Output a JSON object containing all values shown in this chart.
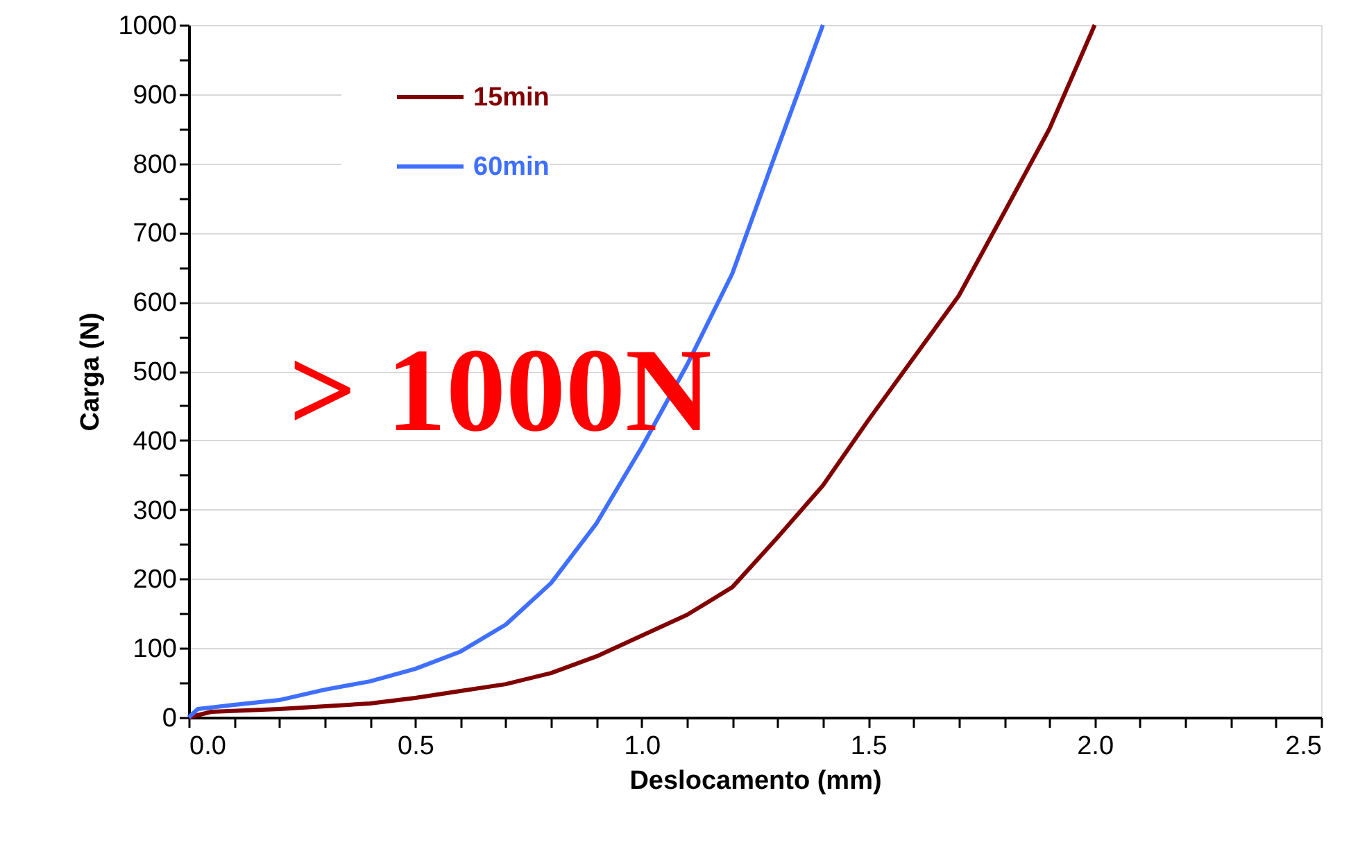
{
  "chart_data": {
    "type": "line",
    "xlabel": "Deslocamento (mm)",
    "ylabel": "Carga (N)",
    "xlim": [
      0,
      2.5
    ],
    "ylim": [
      0,
      1000
    ],
    "xticks": [
      {
        "value": 0,
        "label": "0.0"
      },
      {
        "value": 0.1,
        "label": null
      },
      {
        "value": 0.2,
        "label": null
      },
      {
        "value": 0.3,
        "label": null
      },
      {
        "value": 0.4,
        "label": null
      },
      {
        "value": 0.5,
        "label": "0.5"
      },
      {
        "value": 0.6,
        "label": null
      },
      {
        "value": 0.7,
        "label": null
      },
      {
        "value": 0.8,
        "label": null
      },
      {
        "value": 0.9,
        "label": null
      },
      {
        "value": 1.0,
        "label": "1.0"
      },
      {
        "value": 1.1,
        "label": null
      },
      {
        "value": 1.2,
        "label": null
      },
      {
        "value": 1.3,
        "label": null
      },
      {
        "value": 1.4,
        "label": null
      },
      {
        "value": 1.5,
        "label": "1.5"
      },
      {
        "value": 1.6,
        "label": null
      },
      {
        "value": 1.7,
        "label": null
      },
      {
        "value": 1.8,
        "label": null
      },
      {
        "value": 1.9,
        "label": null
      },
      {
        "value": 2.0,
        "label": "2.0"
      },
      {
        "value": 2.1,
        "label": null
      },
      {
        "value": 2.2,
        "label": null
      },
      {
        "value": 2.3,
        "label": null
      },
      {
        "value": 2.4,
        "label": null
      },
      {
        "value": 2.5,
        "label": "2.5"
      }
    ],
    "yticks": [
      0,
      {
        "value": 50,
        "label": null
      },
      100,
      {
        "value": 150,
        "label": null
      },
      200,
      {
        "value": 250,
        "label": null
      },
      300,
      {
        "value": 350,
        "label": null
      },
      400,
      {
        "value": 450,
        "label": null
      },
      500,
      {
        "value": 550,
        "label": null
      },
      600,
      {
        "value": 650,
        "label": null
      },
      700,
      {
        "value": 750,
        "label": null
      },
      800,
      {
        "value": 850,
        "label": null
      },
      900,
      {
        "value": 950,
        "label": null
      },
      1000
    ],
    "grid": "y",
    "legend": "top left",
    "marker": "none",
    "line_style": "solid",
    "annotations": [
      "> 1000N"
    ],
    "series": [
      {
        "name": "15min",
        "color": "#800000",
        "x": [
          0,
          0.05,
          0.2,
          0.4,
          0.5,
          0.6,
          0.7,
          0.8,
          0.9,
          1.0,
          1.1,
          1.2,
          1.3,
          1.4,
          1.5,
          1.6,
          1.7,
          1.8,
          1.9,
          2.0
        ],
        "values": [
          0,
          8,
          12,
          20,
          28,
          38,
          48,
          64,
          88,
          118,
          148,
          188,
          260,
          335,
          429,
          519,
          609,
          729,
          850,
          1000
        ]
      },
      {
        "name": "60min",
        "color": "#3f6fff",
        "x": [
          0,
          0.02,
          0.1,
          0.2,
          0.3,
          0.4,
          0.5,
          0.6,
          0.7,
          0.8,
          0.9,
          1.0,
          1.1,
          1.2,
          1.3,
          1.4
        ],
        "values": [
          0,
          12,
          18,
          25,
          40,
          52,
          70,
          95,
          134,
          194,
          280,
          390,
          509,
          641,
          822,
          1000
        ]
      }
    ]
  }
}
